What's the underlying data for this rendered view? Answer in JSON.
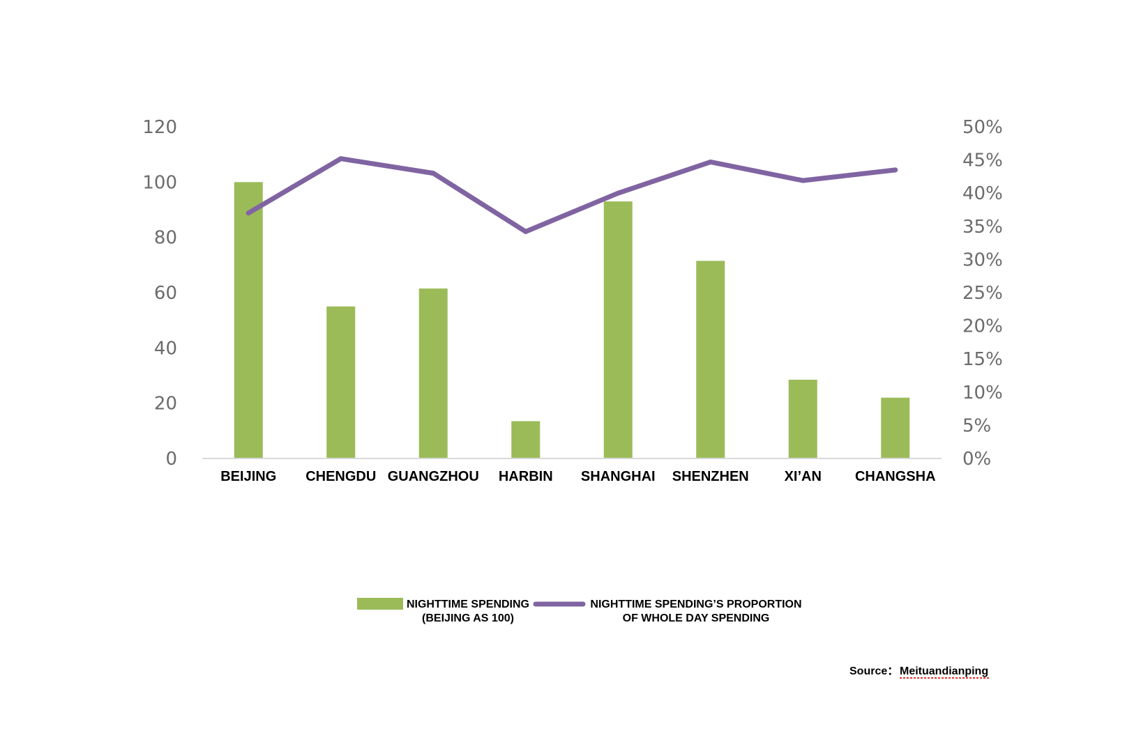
{
  "chart_data": {
    "type": "bar",
    "categories": [
      "BEIJING",
      "CHENGDU",
      "GUANGZHOU",
      "HARBIN",
      "SHANGHAI",
      "SHENZHEN",
      "XI’AN",
      "CHANGSHA"
    ],
    "series": [
      {
        "name": "NIGHTTIME SPENDING (BEIJING AS 100)",
        "type": "bar",
        "axis": "left",
        "color": "#9bbb59",
        "values": [
          100,
          55,
          61.5,
          13.5,
          93,
          71.5,
          28.5,
          22
        ]
      },
      {
        "name": "NIGHTTIME SPENDING’S PROPORTION OF WHOLE DAY SPENDING",
        "type": "line",
        "axis": "right",
        "color": "#8064a2",
        "values": [
          0.37,
          0.452,
          0.43,
          0.342,
          0.4,
          0.447,
          0.419,
          0.435
        ]
      }
    ],
    "left_axis": {
      "ylim": [
        0,
        120
      ],
      "ticks": [
        "0",
        "20",
        "40",
        "60",
        "80",
        "100",
        "120"
      ]
    },
    "right_axis": {
      "ylim": [
        0,
        0.5
      ],
      "ticks": [
        "0%",
        "5%",
        "10%",
        "15%",
        "20%",
        "25%",
        "30%",
        "35%",
        "40%",
        "45%",
        "50%"
      ]
    },
    "grid": false,
    "legend": {
      "placement": "bottom",
      "bar_lines": [
        "NIGHTTIME SPENDING",
        "(BEIJING AS 100)"
      ],
      "line_lines": [
        "NIGHTTIME SPENDING’S PROPORTION",
        "OF WHOLE DAY SPENDING"
      ]
    },
    "source": {
      "label": "Source：",
      "value": "Meituandianping"
    }
  }
}
